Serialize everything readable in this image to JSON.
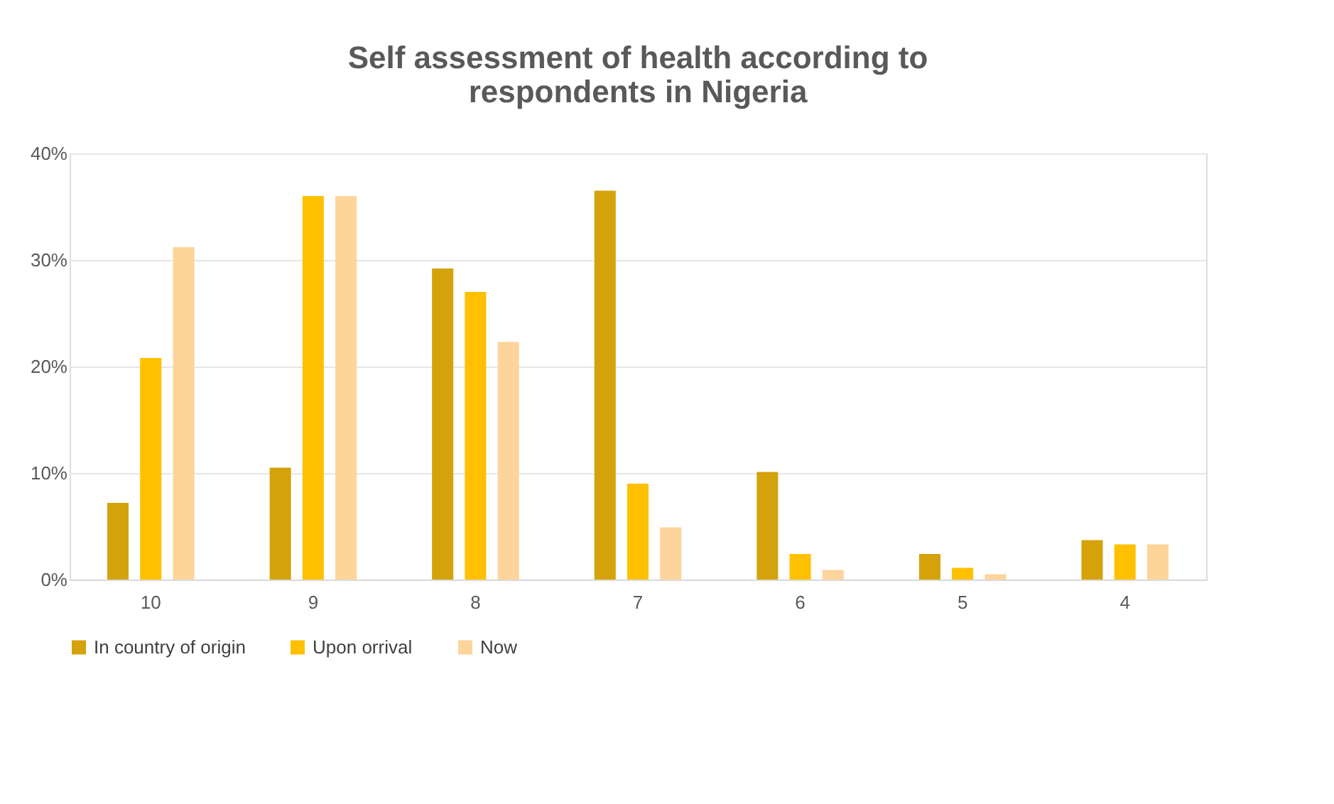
{
  "chart_data": {
    "type": "bar",
    "title": [
      "Self assessment of health according to",
      "respondents in Nigeria"
    ],
    "categories": [
      "10",
      "9",
      "8",
      "7",
      "6",
      "5",
      "4"
    ],
    "series": [
      {
        "name": "In country of origin",
        "color": "#d4a20a",
        "values": [
          7.2,
          10.5,
          29.2,
          36.5,
          10.1,
          2.4,
          3.7
        ]
      },
      {
        "name": "Upon orrival",
        "color": "#ffc000",
        "values": [
          20.8,
          36,
          27,
          9,
          2.4,
          1.1,
          3.3
        ]
      },
      {
        "name": "Now",
        "color": "#fdd49a",
        "values": [
          31.2,
          36,
          22.3,
          4.9,
          0.9,
          0.5,
          3.3
        ]
      }
    ],
    "ylim": [
      0,
      40
    ],
    "yticks": [
      {
        "value": 0,
        "label": "0%"
      },
      {
        "value": 10,
        "label": "10%"
      },
      {
        "value": 20,
        "label": "20%"
      },
      {
        "value": 30,
        "label": "30%"
      },
      {
        "value": 40,
        "label": "40%"
      }
    ],
    "grid": "y",
    "legend": "bottom"
  }
}
